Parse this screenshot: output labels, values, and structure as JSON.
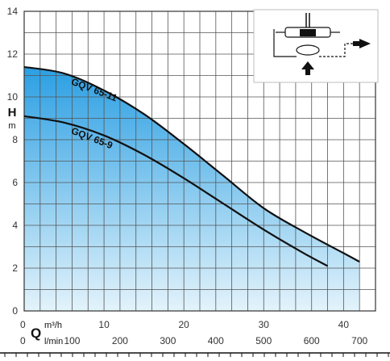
{
  "chart_data": {
    "type": "area",
    "title": "",
    "y_axis": {
      "letter": "H",
      "unit": "m",
      "ylim": [
        0,
        14
      ],
      "ticks": [
        0,
        2,
        4,
        6,
        8,
        10,
        12,
        14
      ],
      "grid_step": 1
    },
    "x_axis_primary": {
      "zero_label": "0",
      "unit": "m³/h",
      "xlim": [
        0,
        44
      ],
      "ticks": [
        10,
        20,
        30,
        40
      ],
      "grid_step": 2
    },
    "x_axis_secondary": {
      "letter": "Q",
      "zero_label": "0",
      "unit": "l/min",
      "ticks": [
        100,
        200,
        300,
        400,
        500,
        600,
        700
      ]
    },
    "grid": true,
    "series": [
      {
        "name": "GQV 65-11",
        "x": [
          0,
          5,
          10,
          15,
          20,
          25,
          30,
          35,
          40,
          42
        ],
        "y": [
          11.4,
          11.1,
          10.3,
          9.2,
          7.8,
          6.3,
          4.8,
          3.7,
          2.7,
          2.3
        ]
      },
      {
        "name": "GQV 65-9",
        "x": [
          0,
          5,
          10,
          15,
          20,
          25,
          30,
          35,
          38
        ],
        "y": [
          9.1,
          8.8,
          8.2,
          7.3,
          6.2,
          5.0,
          3.8,
          2.7,
          2.1
        ]
      }
    ],
    "colors": {
      "fill_top": "#2b9fe3",
      "fill_bottom": "#e3f3fb",
      "grid": "#555555",
      "curve": "#111111"
    },
    "inset_icon": "pump-diagram-icon"
  }
}
